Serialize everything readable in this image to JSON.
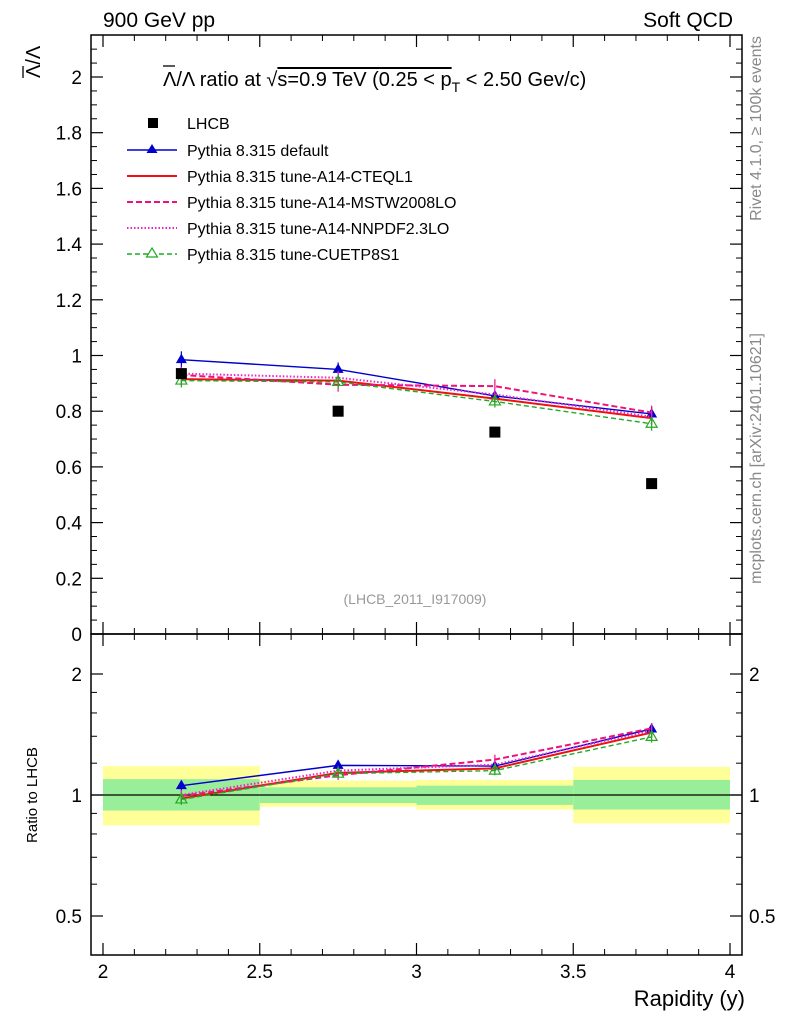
{
  "header": {
    "left_label": "900 GeV pp",
    "right_label": "Soft QCD"
  },
  "side_labels": {
    "rivet": "Rivet 4.1.0, ≥ 100k events",
    "mcplots": "mcplots.cern.ch [arXiv:2401.10621]"
  },
  "chart_data": [
    {
      "panel": "main",
      "type": "line",
      "title_parts": {
        "bar_lambda": "Λ",
        "ratio_text": "/Λ ratio at √",
        "s_eq": "s=0.9 TeV (0.25 < p",
        "sub_T": "T",
        "tail": " < 2.50 Gev/c)"
      },
      "ylabel_parts": {
        "bar_lambda": "Λ",
        "rest": "/Λ"
      },
      "watermark": "(LHCB_2011_I917009)",
      "xlabel": "Rapidity (y)",
      "xlim": [
        2,
        4
      ],
      "ylim": [
        0,
        2.15
      ],
      "x_ticks": [
        "2",
        "2.5",
        "3",
        "3.5",
        "4"
      ],
      "y_ticks": [
        "0",
        "0.2",
        "0.4",
        "0.6",
        "0.8",
        "1",
        "1.2",
        "1.4",
        "1.6",
        "1.8",
        "2"
      ],
      "legend_position": "top-left",
      "data": {
        "name": "LHCB",
        "x": [
          2.25,
          2.75,
          3.25,
          3.75
        ],
        "y": [
          0.935,
          0.8,
          0.725,
          0.54
        ],
        "x_edges": [
          2.0,
          2.5,
          3.0,
          3.5,
          4.0
        ]
      },
      "series": [
        {
          "name": "Pythia 8.315 default",
          "color": "#0000cc",
          "dash": "",
          "marker": "triangle-filled",
          "x": [
            2.25,
            2.75,
            3.25,
            3.75
          ],
          "y": [
            0.985,
            0.95,
            0.855,
            0.79
          ],
          "err": [
            0.03,
            0.025,
            0.022,
            0.025
          ]
        },
        {
          "name": "Pythia 8.315 tune-A14-CTEQL1",
          "color": "#ee1111",
          "dash": "",
          "marker": "",
          "x": [
            2.25,
            2.75,
            3.25,
            3.75
          ],
          "y": [
            0.915,
            0.91,
            0.845,
            0.775
          ],
          "err": [
            0.025,
            0.025,
            0.022,
            0.025
          ]
        },
        {
          "name": "Pythia 8.315 tune-A14-MSTW2008LO",
          "color": "#ee1177",
          "dash": "6,3",
          "marker": "",
          "x": [
            2.25,
            2.75,
            3.25,
            3.75
          ],
          "y": [
            0.93,
            0.895,
            0.89,
            0.795
          ],
          "err": [
            0.025,
            0.025,
            0.025,
            0.025
          ]
        },
        {
          "name": "Pythia 8.315 tune-A14-NNPDF2.3LO",
          "color": "#ee22cc",
          "dash": "1.5,2",
          "marker": "",
          "x": [
            2.25,
            2.75,
            3.25,
            3.75
          ],
          "y": [
            0.935,
            0.92,
            0.86,
            0.78
          ],
          "err": [
            0.025,
            0.025,
            0.022,
            0.025
          ]
        },
        {
          "name": "Pythia 8.315 tune-CUETP8S1",
          "color": "#22aa22",
          "dash": "5,3",
          "marker": "triangle-open",
          "x": [
            2.25,
            2.75,
            3.25,
            3.75
          ],
          "y": [
            0.91,
            0.905,
            0.835,
            0.755
          ],
          "err": [
            0.025,
            0.025,
            0.022,
            0.025
          ]
        }
      ]
    },
    {
      "panel": "ratio",
      "type": "line",
      "ylabel": "Ratio to LHCB",
      "xlim": [
        2,
        4
      ],
      "ylim": [
        0.42,
        2.38
      ],
      "y_ticks_left": [
        "0.5",
        "1",
        "2"
      ],
      "y_ticks_right": [
        "0.5",
        "1",
        "2"
      ],
      "reference_line": 1,
      "bands": [
        {
          "x_range": [
            2.0,
            2.5
          ],
          "inner": [
            0.915,
            1.095
          ],
          "outer": [
            0.84,
            1.18
          ]
        },
        {
          "x_range": [
            2.5,
            3.0
          ],
          "inner": [
            0.955,
            1.045
          ],
          "outer": [
            0.935,
            1.085
          ]
        },
        {
          "x_range": [
            3.0,
            3.5
          ],
          "inner": [
            0.945,
            1.055
          ],
          "outer": [
            0.92,
            1.09
          ]
        },
        {
          "x_range": [
            3.5,
            4.0
          ],
          "inner": [
            0.92,
            1.09
          ],
          "outer": [
            0.85,
            1.175
          ]
        }
      ],
      "series": [
        {
          "name": "Pythia 8.315 default",
          "color": "#0000cc",
          "dash": "",
          "marker": "triangle-filled",
          "x": [
            2.25,
            2.75,
            3.25,
            3.75
          ],
          "y": [
            1.055,
            1.185,
            1.18,
            1.46
          ],
          "err": [
            0.03,
            0.03,
            0.03,
            0.045
          ]
        },
        {
          "name": "Pythia 8.315 tune-A14-CTEQL1",
          "color": "#ee1111",
          "dash": "",
          "marker": "",
          "x": [
            2.25,
            2.75,
            3.25,
            3.75
          ],
          "y": [
            0.98,
            1.135,
            1.165,
            1.43
          ],
          "err": [
            0.03,
            0.03,
            0.03,
            0.045
          ]
        },
        {
          "name": "Pythia 8.315 tune-A14-MSTW2008LO",
          "color": "#ee1177",
          "dash": "6,3",
          "marker": "",
          "x": [
            2.25,
            2.75,
            3.25,
            3.75
          ],
          "y": [
            0.995,
            1.12,
            1.225,
            1.465
          ],
          "err": [
            0.03,
            0.03,
            0.035,
            0.045
          ]
        },
        {
          "name": "Pythia 8.315 tune-A14-NNPDF2.3LO",
          "color": "#ee22cc",
          "dash": "1.5,2",
          "marker": "",
          "x": [
            2.25,
            2.75,
            3.25,
            3.75
          ],
          "y": [
            1.0,
            1.15,
            1.19,
            1.445
          ],
          "err": [
            0.03,
            0.03,
            0.03,
            0.045
          ]
        },
        {
          "name": "Pythia 8.315 tune-CUETP8S1",
          "color": "#22aa22",
          "dash": "5,3",
          "marker": "triangle-open",
          "x": [
            2.25,
            2.75,
            3.25,
            3.75
          ],
          "y": [
            0.975,
            1.13,
            1.15,
            1.395
          ],
          "err": [
            0.03,
            0.03,
            0.03,
            0.045
          ]
        }
      ]
    }
  ]
}
